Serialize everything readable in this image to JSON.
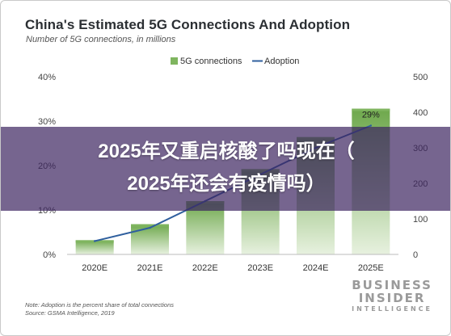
{
  "chart_data": {
    "type": "bar",
    "title": "China's Estimated 5G Connections And Adoption",
    "subtitle": "Number of 5G connections, in millions",
    "categories": [
      "2020E",
      "2021E",
      "2022E",
      "2023E",
      "2024E",
      "2025E"
    ],
    "series": [
      {
        "name": "5G connections",
        "type": "bar",
        "axis": "right",
        "values": [
          40,
          85,
          150,
          240,
          330,
          410
        ],
        "color": "#7fb55f"
      },
      {
        "name": "Adoption",
        "type": "line",
        "axis": "left",
        "values": [
          3,
          6,
          12,
          18,
          24,
          29
        ],
        "color": "#2f5f9e"
      }
    ],
    "left_axis": {
      "ylim": [
        0,
        40
      ],
      "ticks": [
        "0%",
        "10%",
        "20%",
        "30%",
        "40%"
      ]
    },
    "right_axis": {
      "ylim": [
        0,
        500
      ],
      "ticks": [
        "0",
        "100",
        "200",
        "300",
        "400",
        "500"
      ]
    },
    "annotation": "29%",
    "legend_position": "top-right",
    "grid": false
  },
  "overlay": {
    "line1": "2025年又重启核酸了吗现在（",
    "line2": "2025年还会有疫情吗）"
  },
  "notes": {
    "note": "Note: Adoption is the percent share of total connections",
    "source": "Source: GSMA Intelligence, 2019"
  },
  "logo": {
    "line1": "BUSINESS",
    "line2": "INSIDER",
    "line3": "INTELLIGENCE"
  },
  "colors": {
    "bar": "#7fb55f",
    "line": "#2f5f9e",
    "banner": "#3c2460"
  }
}
